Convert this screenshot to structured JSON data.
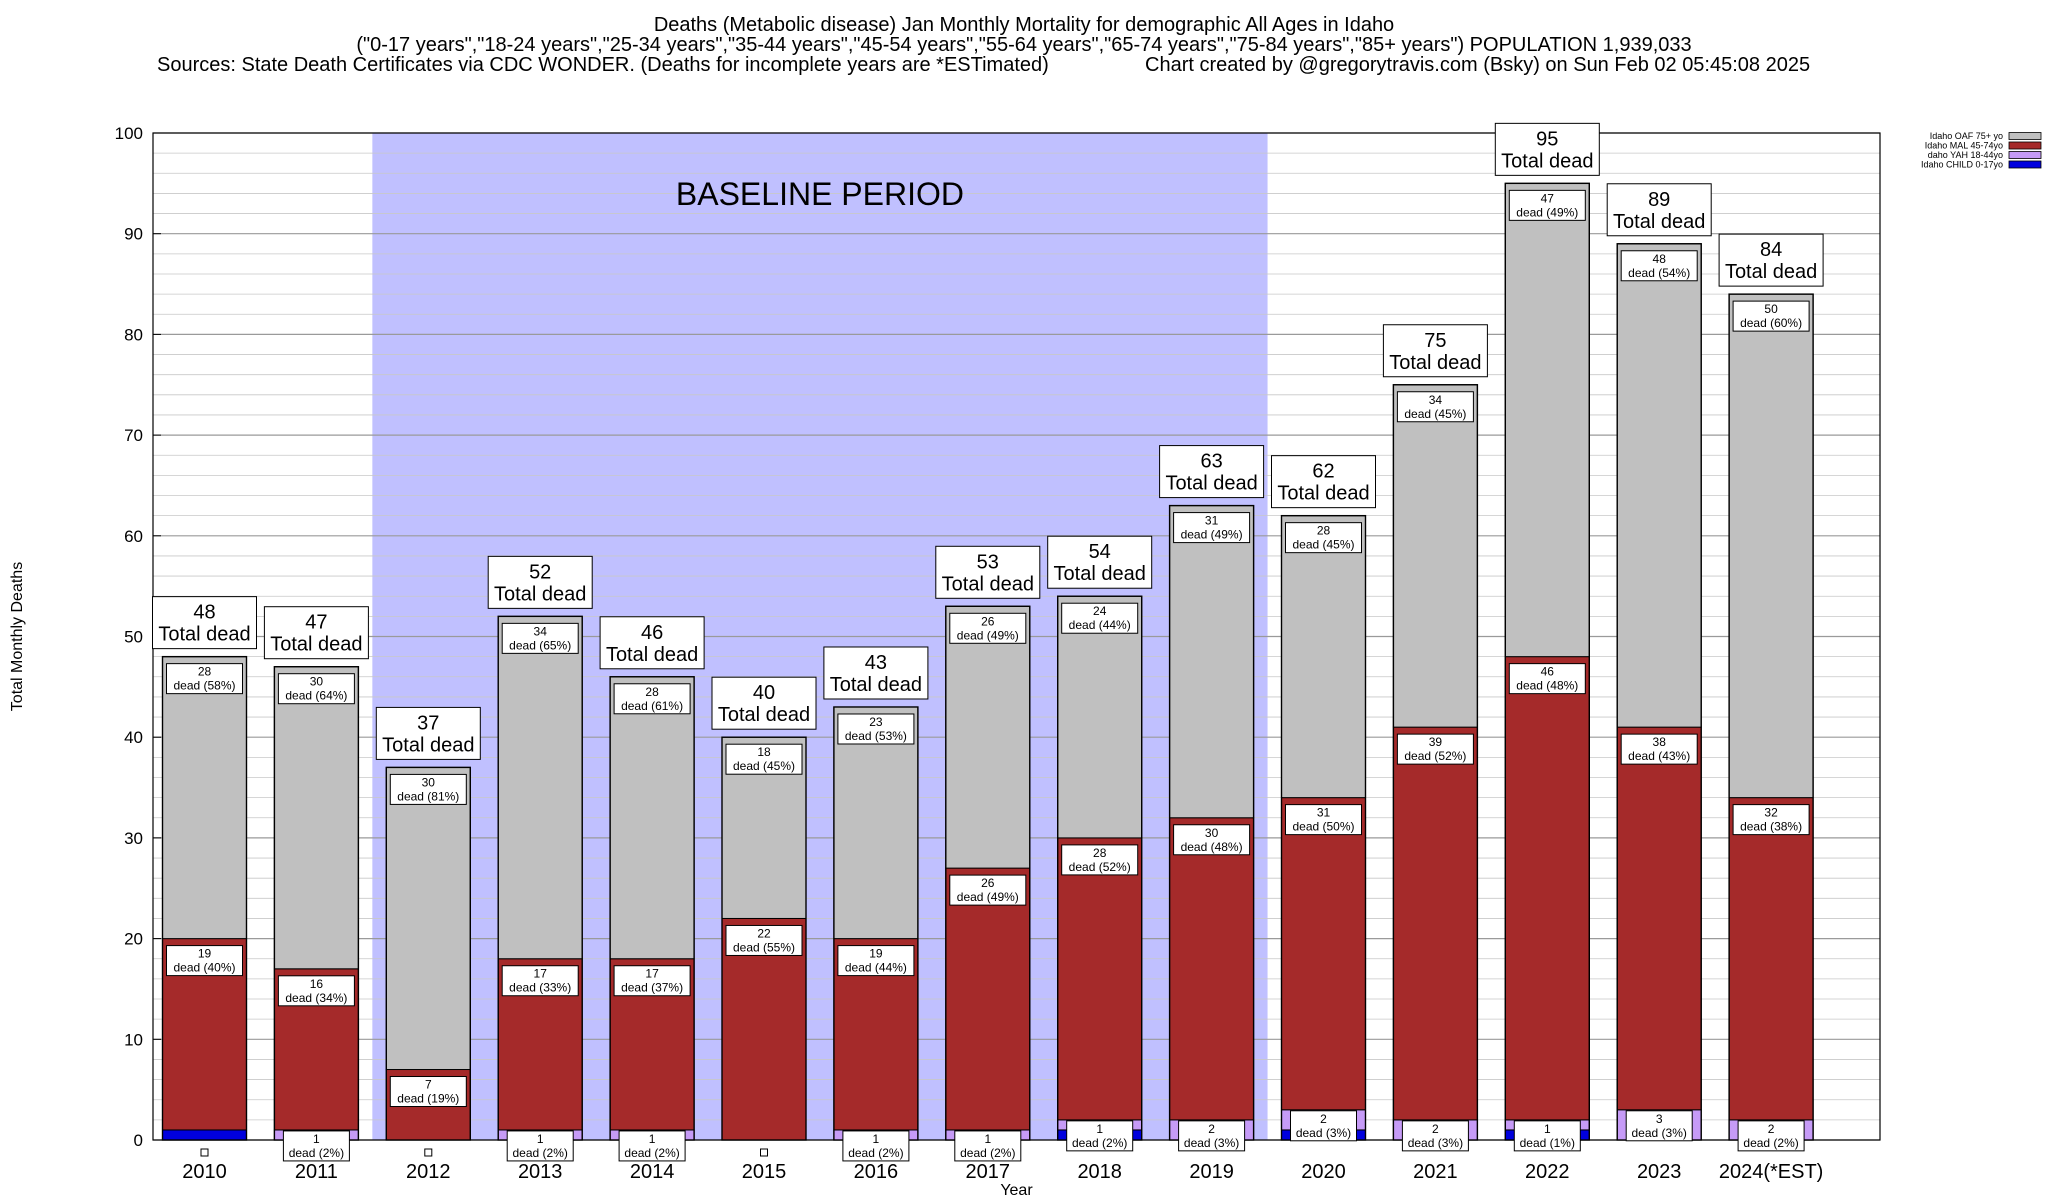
{
  "header": {
    "title": "Deaths (Metabolic disease) Jan Monthly Mortality for demographic All Ages in Idaho",
    "subtitle": "(\"0-17 years\",\"18-24 years\",\"25-34 years\",\"35-44 years\",\"45-54 years\",\"55-64 years\",\"65-74 years\",\"75-84 years\",\"85+ years\") POPULATION 1,939,033",
    "sources": "Sources: State Death Certificates via CDC WONDER. (Deaths for incomplete years are *ESTimated)",
    "credit": "Chart created by @gregorytravis.com (Bsky) on Sun Feb 02 05:45:08 2025"
  },
  "colors": {
    "child": "#0000dd",
    "yah": "#c69bf7",
    "mal": "#a52a2a",
    "oaf": "#c0c0c0",
    "baseline_band": "#c0c0ff"
  },
  "chart_data": {
    "type": "bar",
    "stacked": true,
    "xlabel": "Year",
    "ylabel": "Total Monthly Deaths",
    "ylim": [
      0,
      100
    ],
    "yticks": [
      0,
      10,
      20,
      30,
      40,
      50,
      60,
      70,
      80,
      90,
      100
    ],
    "grid": "horizontal",
    "legend_position": "top-right",
    "categories": [
      "2010",
      "2011",
      "2012",
      "2013",
      "2014",
      "2015",
      "2016",
      "2017",
      "2018",
      "2019",
      "2020",
      "2021",
      "2022",
      "2023",
      "2024(*EST)"
    ],
    "series": [
      {
        "name": "Idaho CHILD 0-17yo",
        "color_key": "child",
        "values": [
          1,
          0,
          0,
          0,
          0,
          0,
          0,
          0,
          1,
          0,
          1,
          0,
          1,
          0,
          0
        ]
      },
      {
        "name": "daho YAH 18-44yo",
        "color_key": "yah",
        "values": [
          0,
          1,
          0,
          1,
          1,
          0,
          1,
          1,
          1,
          2,
          2,
          2,
          1,
          3,
          2
        ]
      },
      {
        "name": "Idaho MAL 45-74yo",
        "color_key": "mal",
        "values": [
          19,
          16,
          7,
          17,
          17,
          22,
          19,
          26,
          28,
          30,
          31,
          39,
          46,
          38,
          32
        ]
      },
      {
        "name": "Idaho OAF 75+ yo",
        "color_key": "oaf",
        "values": [
          28,
          30,
          30,
          34,
          28,
          18,
          23,
          26,
          24,
          31,
          28,
          34,
          47,
          48,
          50
        ]
      }
    ],
    "legend_order": [
      "Idaho OAF 75+ yo",
      "Idaho MAL 45-74yo",
      "daho YAH 18-44yo",
      "Idaho CHILD 0-17yo"
    ],
    "totals": [
      48,
      47,
      37,
      52,
      46,
      40,
      43,
      53,
      54,
      63,
      62,
      75,
      95,
      89,
      84
    ],
    "total_label_suffix": "Total dead",
    "segment_labels": {
      "yah": [
        "",
        "dead (2%)",
        "",
        "dead (2%)",
        "dead (2%)",
        "",
        "dead (2%)",
        "dead (2%)",
        "dead (2%)",
        "dead (3%)",
        "dead (3%)",
        "dead (3%)",
        "dead (1%)",
        "dead (3%)",
        "dead (2%)"
      ],
      "mal": [
        "dead (40%)",
        "dead (34%)",
        "dead (19%)",
        "dead (33%)",
        "dead (37%)",
        "dead (55%)",
        "dead (44%)",
        "dead (49%)",
        "dead (52%)",
        "dead (48%)",
        "dead (50%)",
        "dead (52%)",
        "dead (48%)",
        "dead (43%)",
        "dead (38%)"
      ],
      "oaf": [
        "dead (58%)",
        "dead (64%)",
        "dead (81%)",
        "dead (65%)",
        "dead (61%)",
        "dead (45%)",
        "dead (53%)",
        "dead (49%)",
        "dead (44%)",
        "dead (49%)",
        "dead (45%)",
        "dead (45%)",
        "dead (49%)",
        "dead (54%)",
        "dead (60%)"
      ]
    },
    "annotations": {
      "baseline_label": "BASELINE PERIOD",
      "baseline_years": [
        "2012",
        "2019"
      ]
    }
  }
}
